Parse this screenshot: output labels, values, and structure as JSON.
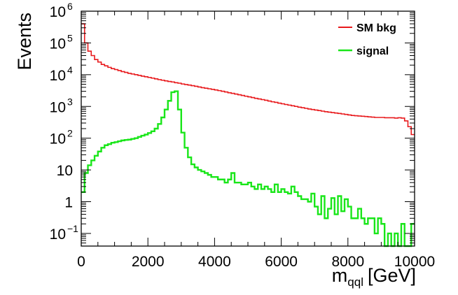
{
  "chart_data": {
    "type": "line",
    "style": "step-histogram",
    "xlabel": "m",
    "xlabel_sub": "qql",
    "xlabel_unit": "[GeV]",
    "ylabel": "Events",
    "xlim": [
      0,
      10000
    ],
    "ylim": [
      0.04,
      1000000
    ],
    "yscale": "log",
    "grid": false,
    "legend_position": "top-right",
    "x_ticks": [
      {
        "value": 0,
        "label": "0"
      },
      {
        "value": 2000,
        "label": "2000"
      },
      {
        "value": 4000,
        "label": "4000"
      },
      {
        "value": 6000,
        "label": "6000"
      },
      {
        "value": 8000,
        "label": "8000"
      },
      {
        "value": 10000,
        "label": "10000"
      }
    ],
    "y_ticks": [
      {
        "value": 1000000,
        "label": "10",
        "sup": "6"
      },
      {
        "value": 100000,
        "label": "10",
        "sup": "5"
      },
      {
        "value": 10000,
        "label": "10",
        "sup": "4"
      },
      {
        "value": 1000,
        "label": "10",
        "sup": "3"
      },
      {
        "value": 100,
        "label": "10",
        "sup": "2"
      },
      {
        "value": 10,
        "label": "10",
        "sup": ""
      },
      {
        "value": 1,
        "label": "1",
        "sup": ""
      },
      {
        "value": 0.1,
        "label": "10",
        "sup": "−1"
      }
    ],
    "bin_width": 100,
    "series": [
      {
        "name": "SM bkg",
        "color": "#e8191c",
        "x": [
          0,
          100,
          200,
          300,
          400,
          500,
          600,
          700,
          800,
          900,
          1000,
          1100,
          1200,
          1300,
          1400,
          1500,
          1600,
          1700,
          1800,
          1900,
          2000,
          2100,
          2200,
          2300,
          2400,
          2500,
          2600,
          2700,
          2800,
          2900,
          3000,
          3100,
          3200,
          3300,
          3400,
          3500,
          3600,
          3700,
          3800,
          3900,
          4000,
          4100,
          4200,
          4300,
          4400,
          4500,
          4600,
          4700,
          4800,
          4900,
          5000,
          5100,
          5200,
          5300,
          5400,
          5500,
          5600,
          5700,
          5800,
          5900,
          6000,
          6100,
          6200,
          6300,
          6400,
          6500,
          6600,
          6700,
          6800,
          6900,
          7000,
          7100,
          7200,
          7300,
          7400,
          7500,
          7600,
          7700,
          7800,
          7900,
          8000,
          8100,
          8200,
          8300,
          8400,
          8500,
          8600,
          8700,
          8800,
          8900,
          9000,
          9100,
          9200,
          9300,
          9400,
          9500,
          9600,
          9700,
          9800,
          9900
        ],
        "values": [
          400000,
          100000,
          55000,
          40000,
          30000,
          25000,
          21000,
          19000,
          17000,
          15500,
          14500,
          13500,
          12500,
          11800,
          11000,
          10500,
          10000,
          9500,
          9000,
          8600,
          8200,
          7800,
          7400,
          7000,
          6700,
          6400,
          6100,
          5900,
          5600,
          5400,
          5100,
          4900,
          4700,
          4500,
          4300,
          4100,
          3900,
          3750,
          3600,
          3450,
          3300,
          3150,
          3000,
          2850,
          2700,
          2580,
          2450,
          2330,
          2220,
          2100,
          2000,
          1900,
          1800,
          1720,
          1640,
          1560,
          1480,
          1400,
          1340,
          1270,
          1210,
          1150,
          1100,
          1050,
          1000,
          950,
          910,
          870,
          830,
          800,
          770,
          740,
          710,
          680,
          660,
          640,
          620,
          600,
          580,
          560,
          540,
          520,
          510,
          500,
          490,
          480,
          470,
          460,
          450,
          450,
          450,
          440,
          440,
          440,
          430,
          440,
          430,
          350,
          230,
          130
        ]
      },
      {
        "name": "signal",
        "color": "#19e619",
        "x": [
          0,
          100,
          200,
          300,
          400,
          500,
          600,
          700,
          800,
          900,
          1000,
          1100,
          1200,
          1300,
          1400,
          1500,
          1600,
          1700,
          1800,
          1900,
          2000,
          2100,
          2200,
          2300,
          2400,
          2500,
          2600,
          2700,
          2800,
          2900,
          3000,
          3100,
          3200,
          3300,
          3400,
          3500,
          3600,
          3700,
          3800,
          3900,
          4000,
          4100,
          4200,
          4300,
          4400,
          4500,
          4600,
          4700,
          4800,
          4900,
          5000,
          5100,
          5200,
          5300,
          5400,
          5500,
          5600,
          5700,
          5800,
          5900,
          6000,
          6100,
          6200,
          6300,
          6400,
          6500,
          6600,
          6700,
          6800,
          6900,
          7000,
          7100,
          7200,
          7300,
          7400,
          7500,
          7600,
          7700,
          7800,
          7900,
          8000,
          8100,
          8200,
          8300,
          8400,
          8500,
          8600,
          8700,
          8800,
          8900,
          9000,
          9100,
          9200,
          9300,
          9400,
          9500,
          9600,
          9700,
          9800,
          9900
        ],
        "values": [
          2,
          8,
          14,
          20,
          28,
          38,
          50,
          60,
          65,
          72,
          75,
          80,
          85,
          88,
          90,
          95,
          100,
          110,
          120,
          130,
          145,
          165,
          200,
          280,
          450,
          800,
          1500,
          2800,
          3000,
          800,
          150,
          50,
          25,
          15,
          12,
          10,
          9,
          8,
          7,
          6,
          6,
          5,
          5,
          4,
          5,
          8,
          4,
          4,
          3.5,
          3.5,
          4,
          3,
          2.5,
          3.5,
          2.5,
          3,
          2.5,
          2,
          3.5,
          2,
          2.5,
          2,
          1.8,
          3,
          2,
          1.5,
          1.2,
          1.2,
          1,
          1.8,
          0.7,
          0.4,
          1.5,
          0.3,
          0.6,
          1.3,
          0.4,
          1.5,
          0.5,
          1.2,
          0.7,
          0.3,
          0.3,
          0.6,
          0.3,
          0.2,
          0.3,
          0.3,
          0.1,
          0.3,
          0.2,
          0.01,
          0.1,
          0.01,
          0.1,
          0.01,
          0.2,
          0.01,
          0.01,
          0.2
        ]
      }
    ]
  }
}
